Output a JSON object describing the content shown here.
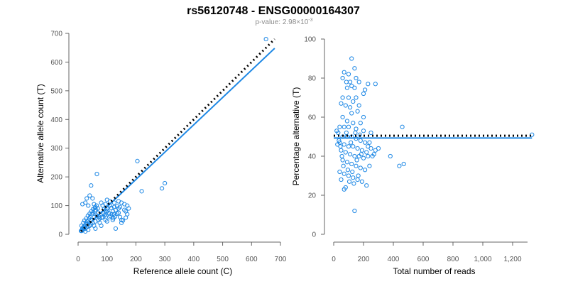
{
  "header": {
    "title": "rs56120748 - ENSG00000164307",
    "pvalue_label": "p-value: 2.98×10",
    "pvalue_exponent": "-3"
  },
  "chart_data": [
    {
      "type": "scatter",
      "xlabel": "Reference allele count (C)",
      "ylabel": "Alternative allele count (T)",
      "xlim": [
        0,
        700
      ],
      "ylim": [
        0,
        700
      ],
      "x_ticks": [
        "0",
        "100",
        "200",
        "300",
        "400",
        "500",
        "600",
        "700"
      ],
      "y_ticks": [
        "0",
        "100",
        "200",
        "300",
        "400",
        "500",
        "600",
        "700"
      ],
      "fit_line": {
        "x": [
          10,
          680
        ],
        "y": [
          10,
          648
        ]
      },
      "reference_line": {
        "x": [
          10,
          680
        ],
        "y": [
          10,
          680
        ]
      },
      "points": [
        [
          650,
          680
        ],
        [
          205,
          255
        ],
        [
          300,
          178
        ],
        [
          290,
          160
        ],
        [
          220,
          150
        ],
        [
          65,
          210
        ],
        [
          45,
          170
        ],
        [
          40,
          135
        ],
        [
          50,
          125
        ],
        [
          30,
          125
        ],
        [
          25,
          110
        ],
        [
          15,
          105
        ],
        [
          35,
          100
        ],
        [
          55,
          105
        ],
        [
          60,
          95
        ],
        [
          80,
          110
        ],
        [
          100,
          120
        ],
        [
          110,
          115
        ],
        [
          125,
          110
        ],
        [
          140,
          115
        ],
        [
          150,
          110
        ],
        [
          160,
          105
        ],
        [
          170,
          100
        ],
        [
          175,
          90
        ],
        [
          165,
          80
        ],
        [
          130,
          85
        ],
        [
          120,
          80
        ],
        [
          105,
          75
        ],
        [
          95,
          70
        ],
        [
          85,
          60
        ],
        [
          75,
          55
        ],
        [
          70,
          50
        ],
        [
          60,
          45
        ],
        [
          50,
          40
        ],
        [
          45,
          35
        ],
        [
          40,
          30
        ],
        [
          35,
          28
        ],
        [
          30,
          25
        ],
        [
          25,
          20
        ],
        [
          20,
          18
        ],
        [
          15,
          15
        ],
        [
          12,
          12
        ],
        [
          18,
          25
        ],
        [
          22,
          30
        ],
        [
          28,
          40
        ],
        [
          32,
          45
        ],
        [
          38,
          55
        ],
        [
          42,
          60
        ],
        [
          48,
          70
        ],
        [
          52,
          75
        ],
        [
          58,
          80
        ],
        [
          62,
          85
        ],
        [
          68,
          90
        ],
        [
          72,
          62
        ],
        [
          78,
          68
        ],
        [
          82,
          58
        ],
        [
          88,
          72
        ],
        [
          92,
          66
        ],
        [
          98,
          78
        ],
        [
          102,
          82
        ],
        [
          108,
          60
        ],
        [
          112,
          64
        ],
        [
          118,
          70
        ],
        [
          122,
          56
        ],
        [
          128,
          62
        ],
        [
          135,
          72
        ],
        [
          145,
          60
        ],
        [
          150,
          50
        ],
        [
          155,
          48
        ],
        [
          160,
          85
        ],
        [
          145,
          95
        ],
        [
          135,
          98
        ],
        [
          115,
          92
        ],
        [
          100,
          90
        ],
        [
          90,
          88
        ],
        [
          70,
          75
        ],
        [
          65,
          65
        ],
        [
          55,
          60
        ],
        [
          45,
          50
        ],
        [
          38,
          40
        ],
        [
          30,
          35
        ],
        [
          25,
          30
        ],
        [
          20,
          22
        ],
        [
          15,
          20
        ],
        [
          10,
          12
        ],
        [
          12,
          30
        ],
        [
          18,
          40
        ],
        [
          22,
          48
        ],
        [
          28,
          55
        ],
        [
          34,
          65
        ],
        [
          40,
          72
        ],
        [
          46,
          80
        ],
        [
          52,
          88
        ],
        [
          58,
          92
        ],
        [
          64,
          100
        ],
        [
          85,
          100
        ],
        [
          95,
          105
        ],
        [
          110,
          100
        ],
        [
          125,
          95
        ],
        [
          140,
          90
        ],
        [
          60,
          20
        ],
        [
          80,
          30
        ],
        [
          100,
          45
        ],
        [
          120,
          50
        ],
        [
          95,
          50
        ],
        [
          75,
          40
        ],
        [
          55,
          30
        ],
        [
          35,
          15
        ],
        [
          25,
          10
        ],
        [
          130,
          20
        ],
        [
          150,
          40
        ],
        [
          165,
          58
        ],
        [
          170,
          70
        ],
        [
          140,
          75
        ],
        [
          125,
          70
        ]
      ]
    },
    {
      "type": "scatter",
      "xlabel": "Total number of reads",
      "ylabel": "Percentage alternative (T)",
      "xlim": [
        0,
        1300
      ],
      "ylim": [
        0,
        100
      ],
      "x_ticks": [
        "0",
        "200",
        "400",
        "600",
        "800",
        "1,000",
        "1,200"
      ],
      "y_ticks": [
        "0",
        "20",
        "40",
        "60",
        "80",
        "100"
      ],
      "fit_line": {
        "x": [
          0,
          1330
        ],
        "y": [
          49.3,
          49.3
        ]
      },
      "reference_line": {
        "x": [
          0,
          1330
        ],
        "y": [
          50.5,
          50.5
        ]
      },
      "points": [
        [
          1330,
          51
        ],
        [
          460,
          55
        ],
        [
          470,
          36
        ],
        [
          440,
          35
        ],
        [
          380,
          40
        ],
        [
          120,
          90
        ],
        [
          140,
          85
        ],
        [
          100,
          82
        ],
        [
          70,
          83
        ],
        [
          60,
          80
        ],
        [
          150,
          80
        ],
        [
          85,
          78
        ],
        [
          110,
          78
        ],
        [
          170,
          78
        ],
        [
          230,
          77
        ],
        [
          280,
          77
        ],
        [
          120,
          76
        ],
        [
          90,
          75
        ],
        [
          140,
          75
        ],
        [
          60,
          70
        ],
        [
          100,
          70
        ],
        [
          150,
          70
        ],
        [
          200,
          72
        ],
        [
          130,
          68
        ],
        [
          80,
          66
        ],
        [
          50,
          67
        ],
        [
          110,
          65
        ],
        [
          160,
          63
        ],
        [
          200,
          60
        ],
        [
          60,
          60
        ],
        [
          90,
          58
        ],
        [
          130,
          57
        ],
        [
          180,
          57
        ],
        [
          40,
          55
        ],
        [
          70,
          55
        ],
        [
          100,
          55
        ],
        [
          150,
          54
        ],
        [
          200,
          53
        ],
        [
          250,
          52
        ],
        [
          30,
          52
        ],
        [
          60,
          50
        ],
        [
          90,
          50
        ],
        [
          120,
          50
        ],
        [
          150,
          49
        ],
        [
          180,
          48
        ],
        [
          210,
          47
        ],
        [
          240,
          47
        ],
        [
          40,
          47
        ],
        [
          70,
          46
        ],
        [
          100,
          45
        ],
        [
          130,
          45
        ],
        [
          160,
          44
        ],
        [
          190,
          43
        ],
        [
          220,
          42
        ],
        [
          250,
          44
        ],
        [
          280,
          43
        ],
        [
          50,
          43
        ],
        [
          80,
          42
        ],
        [
          110,
          41
        ],
        [
          140,
          40
        ],
        [
          170,
          40
        ],
        [
          200,
          39
        ],
        [
          230,
          40
        ],
        [
          260,
          40
        ],
        [
          60,
          38
        ],
        [
          90,
          37
        ],
        [
          120,
          36
        ],
        [
          150,
          35
        ],
        [
          180,
          34
        ],
        [
          210,
          33
        ],
        [
          240,
          35
        ],
        [
          40,
          32
        ],
        [
          70,
          31
        ],
        [
          100,
          30
        ],
        [
          130,
          29
        ],
        [
          160,
          28
        ],
        [
          190,
          27
        ],
        [
          220,
          25
        ],
        [
          70,
          23
        ],
        [
          140,
          12
        ],
        [
          120,
          62
        ],
        [
          170,
          66
        ],
        [
          210,
          74
        ],
        [
          230,
          45
        ],
        [
          270,
          41
        ],
        [
          300,
          44
        ],
        [
          55,
          40
        ],
        [
          45,
          45
        ],
        [
          35,
          48
        ],
        [
          25,
          46
        ],
        [
          20,
          53
        ],
        [
          85,
          52
        ],
        [
          115,
          47
        ],
        [
          145,
          52
        ],
        [
          175,
          51
        ],
        [
          65,
          35
        ],
        [
          95,
          33
        ],
        [
          125,
          32
        ],
        [
          155,
          38
        ],
        [
          185,
          41
        ],
        [
          105,
          27
        ],
        [
          135,
          26
        ],
        [
          165,
          30
        ],
        [
          80,
          24
        ],
        [
          50,
          28
        ]
      ]
    }
  ]
}
